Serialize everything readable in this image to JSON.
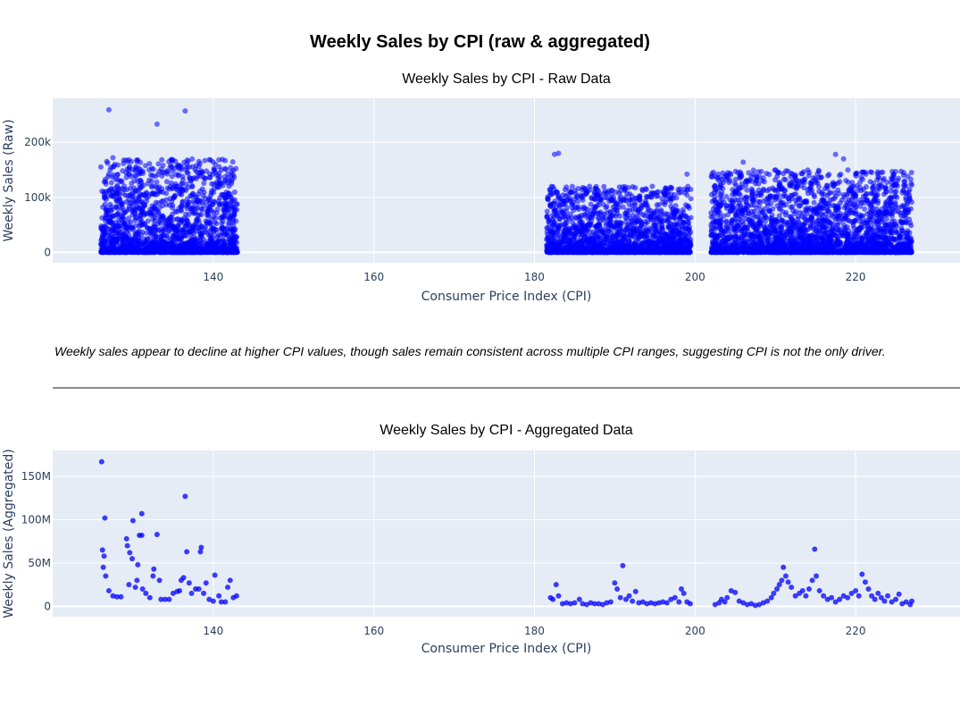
{
  "title": "Weekly Sales by CPI (raw & aggregated)",
  "insight": "Weekly sales appear to decline at higher CPI values, though sales remain consistent across multiple CPI ranges, suggesting CPI is not the only driver.",
  "colors": {
    "marker": "#0000ff",
    "plot_bg": "#e5ecf6",
    "grid": "#ffffff",
    "divider": "#8c8c8c"
  },
  "chart_data": [
    {
      "type": "scatter",
      "title": "Weekly Sales by CPI - Raw Data",
      "xlabel": "Consumer Price Index (CPI)",
      "ylabel": "Weekly Sales (Raw)",
      "xlim": [
        120,
        233
      ],
      "ylim": [
        -19000,
        280000
      ],
      "xticks": [
        140,
        160,
        180,
        200,
        220
      ],
      "yticks": [
        0,
        100000,
        200000
      ],
      "ytick_labels": [
        "0",
        "100k",
        "200k"
      ],
      "grid": true,
      "marker_opacity": 0.55,
      "clusters": [
        {
          "x_range": [
            126,
            143
          ],
          "y_max": 170000
        },
        {
          "x_range": [
            181.5,
            199.5
          ],
          "y_max": 120000
        },
        {
          "x_range": [
            202,
            227
          ],
          "y_max": 150000
        }
      ],
      "points": [
        [
          127,
          259000
        ],
        [
          133,
          233000
        ],
        [
          136.5,
          257000
        ],
        [
          182.5,
          178000
        ],
        [
          183,
          180000
        ],
        [
          206,
          164000
        ],
        [
          217.5,
          178000
        ],
        [
          218.5,
          170000
        ],
        [
          221,
          146000
        ],
        [
          211,
          143000
        ],
        [
          199,
          142000
        ],
        [
          127.5,
          172000
        ],
        [
          129.5,
          168000
        ],
        [
          130.5,
          165000
        ],
        [
          135.5,
          157000
        ],
        [
          137,
          155000
        ],
        [
          126,
          155000
        ],
        [
          138.5,
          148000
        ],
        [
          140.5,
          140000
        ],
        [
          139,
          135000
        ],
        [
          142,
          130000
        ]
      ]
    },
    {
      "type": "scatter",
      "title": "Weekly Sales by CPI - Aggregated Data",
      "xlabel": "Consumer Price Index (CPI)",
      "ylabel": "Weekly Sales (Aggregated)",
      "xlim": [
        120,
        233
      ],
      "ylim": [
        -12000000,
        180000000
      ],
      "xticks": [
        140,
        160,
        180,
        200,
        220
      ],
      "yticks": [
        0,
        50000000,
        100000000,
        150000000
      ],
      "ytick_labels": [
        "0",
        "50M",
        "100M",
        "150M"
      ],
      "grid": true,
      "marker_opacity": 0.75,
      "points": [
        [
          126.1,
          167000000
        ],
        [
          126.5,
          102000000
        ],
        [
          126.2,
          65000000
        ],
        [
          126.4,
          58000000
        ],
        [
          126.3,
          45000000
        ],
        [
          126.6,
          35000000
        ],
        [
          127.0,
          18000000
        ],
        [
          127.5,
          12000000
        ],
        [
          128.0,
          11000000
        ],
        [
          128.5,
          11000000
        ],
        [
          129.2,
          78000000
        ],
        [
          129.3,
          70000000
        ],
        [
          129.6,
          62000000
        ],
        [
          129.9,
          55000000
        ],
        [
          129.5,
          25000000
        ],
        [
          130.0,
          99000000
        ],
        [
          130.3,
          22000000
        ],
        [
          130.5,
          30000000
        ],
        [
          130.6,
          48000000
        ],
        [
          130.8,
          82000000
        ],
        [
          131.1,
          107000000
        ],
        [
          131.1,
          82000000
        ],
        [
          131.2,
          20000000
        ],
        [
          131.6,
          15000000
        ],
        [
          132.1,
          10000000
        ],
        [
          132.5,
          35000000
        ],
        [
          132.6,
          43000000
        ],
        [
          133.0,
          83000000
        ],
        [
          133.3,
          30000000
        ],
        [
          133.5,
          8000000
        ],
        [
          134.0,
          8000000
        ],
        [
          134.5,
          8000000
        ],
        [
          135.0,
          15000000
        ],
        [
          135.5,
          17000000
        ],
        [
          135.8,
          18000000
        ],
        [
          136.0,
          30000000
        ],
        [
          136.3,
          33000000
        ],
        [
          136.5,
          127000000
        ],
        [
          136.7,
          63000000
        ],
        [
          137.0,
          27000000
        ],
        [
          137.3,
          15000000
        ],
        [
          137.8,
          20000000
        ],
        [
          138.2,
          20000000
        ],
        [
          138.4,
          63000000
        ],
        [
          138.5,
          68000000
        ],
        [
          138.8,
          15000000
        ],
        [
          139.1,
          27000000
        ],
        [
          139.5,
          8000000
        ],
        [
          140.0,
          6000000
        ],
        [
          140.2,
          36000000
        ],
        [
          140.7,
          12000000
        ],
        [
          141.0,
          5000000
        ],
        [
          141.5,
          5000000
        ],
        [
          141.8,
          22000000
        ],
        [
          142.1,
          30000000
        ],
        [
          142.5,
          10000000
        ],
        [
          142.9,
          12000000
        ],
        [
          182.0,
          10000000
        ],
        [
          182.3,
          8000000
        ],
        [
          182.7,
          25000000
        ],
        [
          183.0,
          12000000
        ],
        [
          183.5,
          3000000
        ],
        [
          184.0,
          4000000
        ],
        [
          184.5,
          3000000
        ],
        [
          185.0,
          4000000
        ],
        [
          185.6,
          8000000
        ],
        [
          186.0,
          3000000
        ],
        [
          186.5,
          2000000
        ],
        [
          187.0,
          4000000
        ],
        [
          187.5,
          3000000
        ],
        [
          188.0,
          3000000
        ],
        [
          188.5,
          2000000
        ],
        [
          189.0,
          4000000
        ],
        [
          189.5,
          5000000
        ],
        [
          190.0,
          27000000
        ],
        [
          190.3,
          20000000
        ],
        [
          190.7,
          10000000
        ],
        [
          191.0,
          47000000
        ],
        [
          191.4,
          8000000
        ],
        [
          191.8,
          12000000
        ],
        [
          192.2,
          6000000
        ],
        [
          192.6,
          17000000
        ],
        [
          193.0,
          4000000
        ],
        [
          193.5,
          5000000
        ],
        [
          194.0,
          3000000
        ],
        [
          194.5,
          4000000
        ],
        [
          195.0,
          3000000
        ],
        [
          195.5,
          4000000
        ],
        [
          196.0,
          5000000
        ],
        [
          196.5,
          4000000
        ],
        [
          197.0,
          8000000
        ],
        [
          197.5,
          10000000
        ],
        [
          198.0,
          5000000
        ],
        [
          198.3,
          20000000
        ],
        [
          198.6,
          15000000
        ],
        [
          199.0,
          5000000
        ],
        [
          199.4,
          3000000
        ],
        [
          202.5,
          2000000
        ],
        [
          203.0,
          4000000
        ],
        [
          203.3,
          8000000
        ],
        [
          203.7,
          5000000
        ],
        [
          204.0,
          10000000
        ],
        [
          204.5,
          18000000
        ],
        [
          205.0,
          16000000
        ],
        [
          205.5,
          6000000
        ],
        [
          206.0,
          4000000
        ],
        [
          206.5,
          2000000
        ],
        [
          207.0,
          3000000
        ],
        [
          207.5,
          1000000
        ],
        [
          208.0,
          2000000
        ],
        [
          208.5,
          4000000
        ],
        [
          209.0,
          6000000
        ],
        [
          209.5,
          10000000
        ],
        [
          209.8,
          15000000
        ],
        [
          210.2,
          20000000
        ],
        [
          210.5,
          25000000
        ],
        [
          210.8,
          30000000
        ],
        [
          211.0,
          45000000
        ],
        [
          211.3,
          35000000
        ],
        [
          211.6,
          28000000
        ],
        [
          212.0,
          22000000
        ],
        [
          212.5,
          12000000
        ],
        [
          213.0,
          15000000
        ],
        [
          213.4,
          18000000
        ],
        [
          213.8,
          12000000
        ],
        [
          214.2,
          20000000
        ],
        [
          214.6,
          30000000
        ],
        [
          214.9,
          66000000
        ],
        [
          215.1,
          35000000
        ],
        [
          215.5,
          18000000
        ],
        [
          216.0,
          12000000
        ],
        [
          216.5,
          8000000
        ],
        [
          217.0,
          10000000
        ],
        [
          217.5,
          5000000
        ],
        [
          218.0,
          8000000
        ],
        [
          218.5,
          12000000
        ],
        [
          219.0,
          10000000
        ],
        [
          219.5,
          15000000
        ],
        [
          220.0,
          18000000
        ],
        [
          220.4,
          12000000
        ],
        [
          220.8,
          37000000
        ],
        [
          221.2,
          28000000
        ],
        [
          221.6,
          20000000
        ],
        [
          222.0,
          12000000
        ],
        [
          222.4,
          8000000
        ],
        [
          222.8,
          15000000
        ],
        [
          223.2,
          10000000
        ],
        [
          223.6,
          6000000
        ],
        [
          224.0,
          12000000
        ],
        [
          224.5,
          5000000
        ],
        [
          225.0,
          8000000
        ],
        [
          225.4,
          14000000
        ],
        [
          225.8,
          3000000
        ],
        [
          226.3,
          5000000
        ],
        [
          226.8,
          2000000
        ],
        [
          227.0,
          6000000
        ]
      ]
    }
  ]
}
